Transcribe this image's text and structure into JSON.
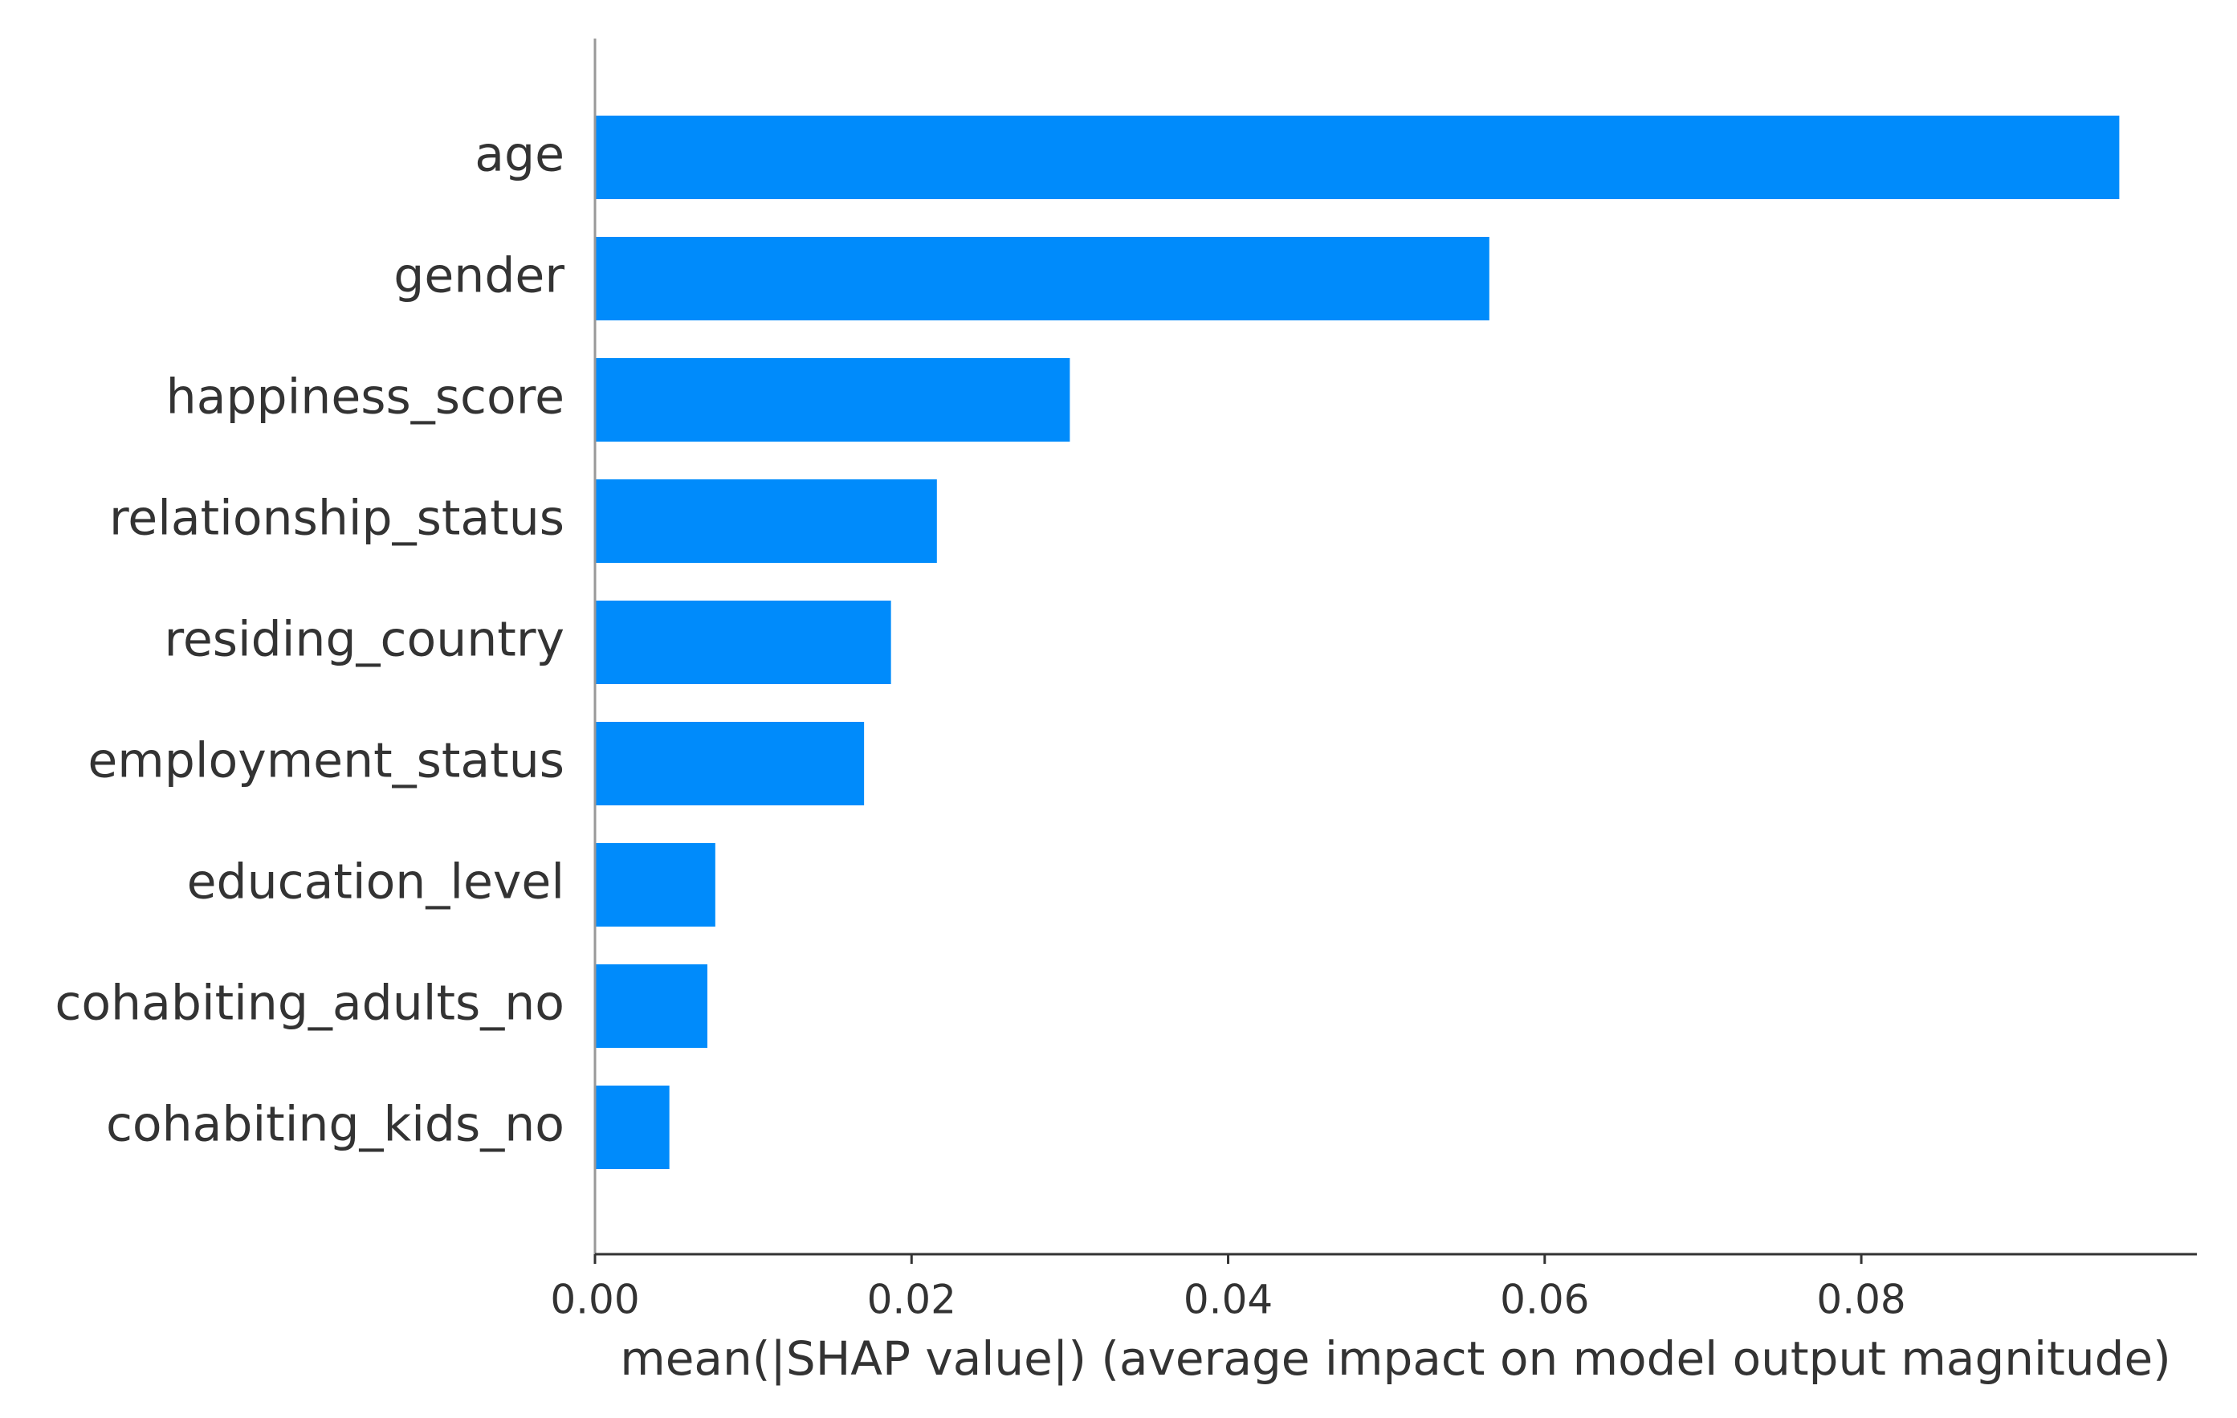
{
  "chart_data": {
    "type": "barh",
    "categories": [
      "age",
      "gender",
      "happiness_score",
      "relationship_status",
      "residing_country",
      "employment_status",
      "education_level",
      "cohabiting_adults_no",
      "cohabiting_kids_no"
    ],
    "values": [
      0.0963,
      0.0565,
      0.03,
      0.0216,
      0.0187,
      0.017,
      0.0076,
      0.0071,
      0.0047
    ],
    "color": "#008bfb",
    "xlabel": "mean(|SHAP value|) (average impact on model output magnitude)",
    "xlim": [
      0,
      0.1012
    ],
    "xticks": [
      {
        "value": 0,
        "label": "0.00"
      },
      0.02,
      0.04,
      0.06,
      0.08
    ]
  }
}
